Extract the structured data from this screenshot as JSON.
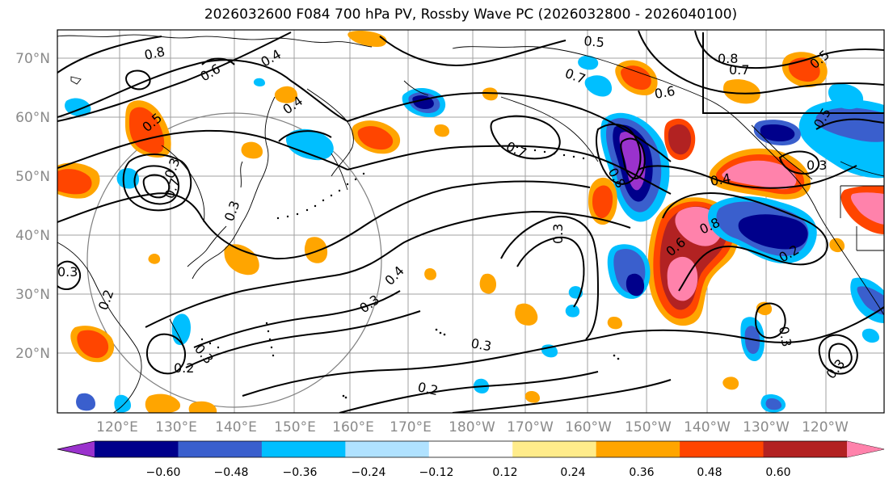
{
  "title": "2026032600 F084 700 hPa PV, Rossby Wave PC (2026032800 - 2026040100)",
  "latitudes": [
    "70°N",
    "60°N",
    "50°N",
    "40°N",
    "30°N",
    "20°N"
  ],
  "longitudes": [
    "120°E",
    "130°E",
    "140°E",
    "150°E",
    "160°E",
    "170°E",
    "180°W",
    "170°W",
    "160°W",
    "150°W",
    "140°W",
    "130°W",
    "120°W"
  ],
  "colorbar": {
    "ticks": [
      "−0.60",
      "−0.48",
      "−0.36",
      "−0.24",
      "−0.12",
      "0.12",
      "0.24",
      "0.36",
      "0.48",
      "0.60"
    ],
    "colors": [
      "#9a32cd",
      "#00008b",
      "#3a5fcd",
      "#00bfff",
      "#b0e2ff",
      "#ffffff",
      "#ffec8b",
      "#ffa500",
      "#ff4500",
      "#b22222",
      "#ff82ab"
    ]
  },
  "contour_labels": [
    "0.8",
    "0.6",
    "0.4",
    "0.4",
    "0.5",
    "0.5",
    "0.7",
    "0.6",
    "0.8",
    "0.7",
    "0.5",
    "0.7",
    "0.5",
    "0.3",
    "0.4",
    "0.8",
    "0.6",
    "0.7",
    "0.3",
    "0.4",
    "0.3",
    "0.2",
    "0.3",
    "0.2",
    "0.3",
    "0.3",
    "0.3",
    "0.2",
    "0.3",
    "0.3",
    "0.2",
    "0.3",
    "0.8"
  ]
}
